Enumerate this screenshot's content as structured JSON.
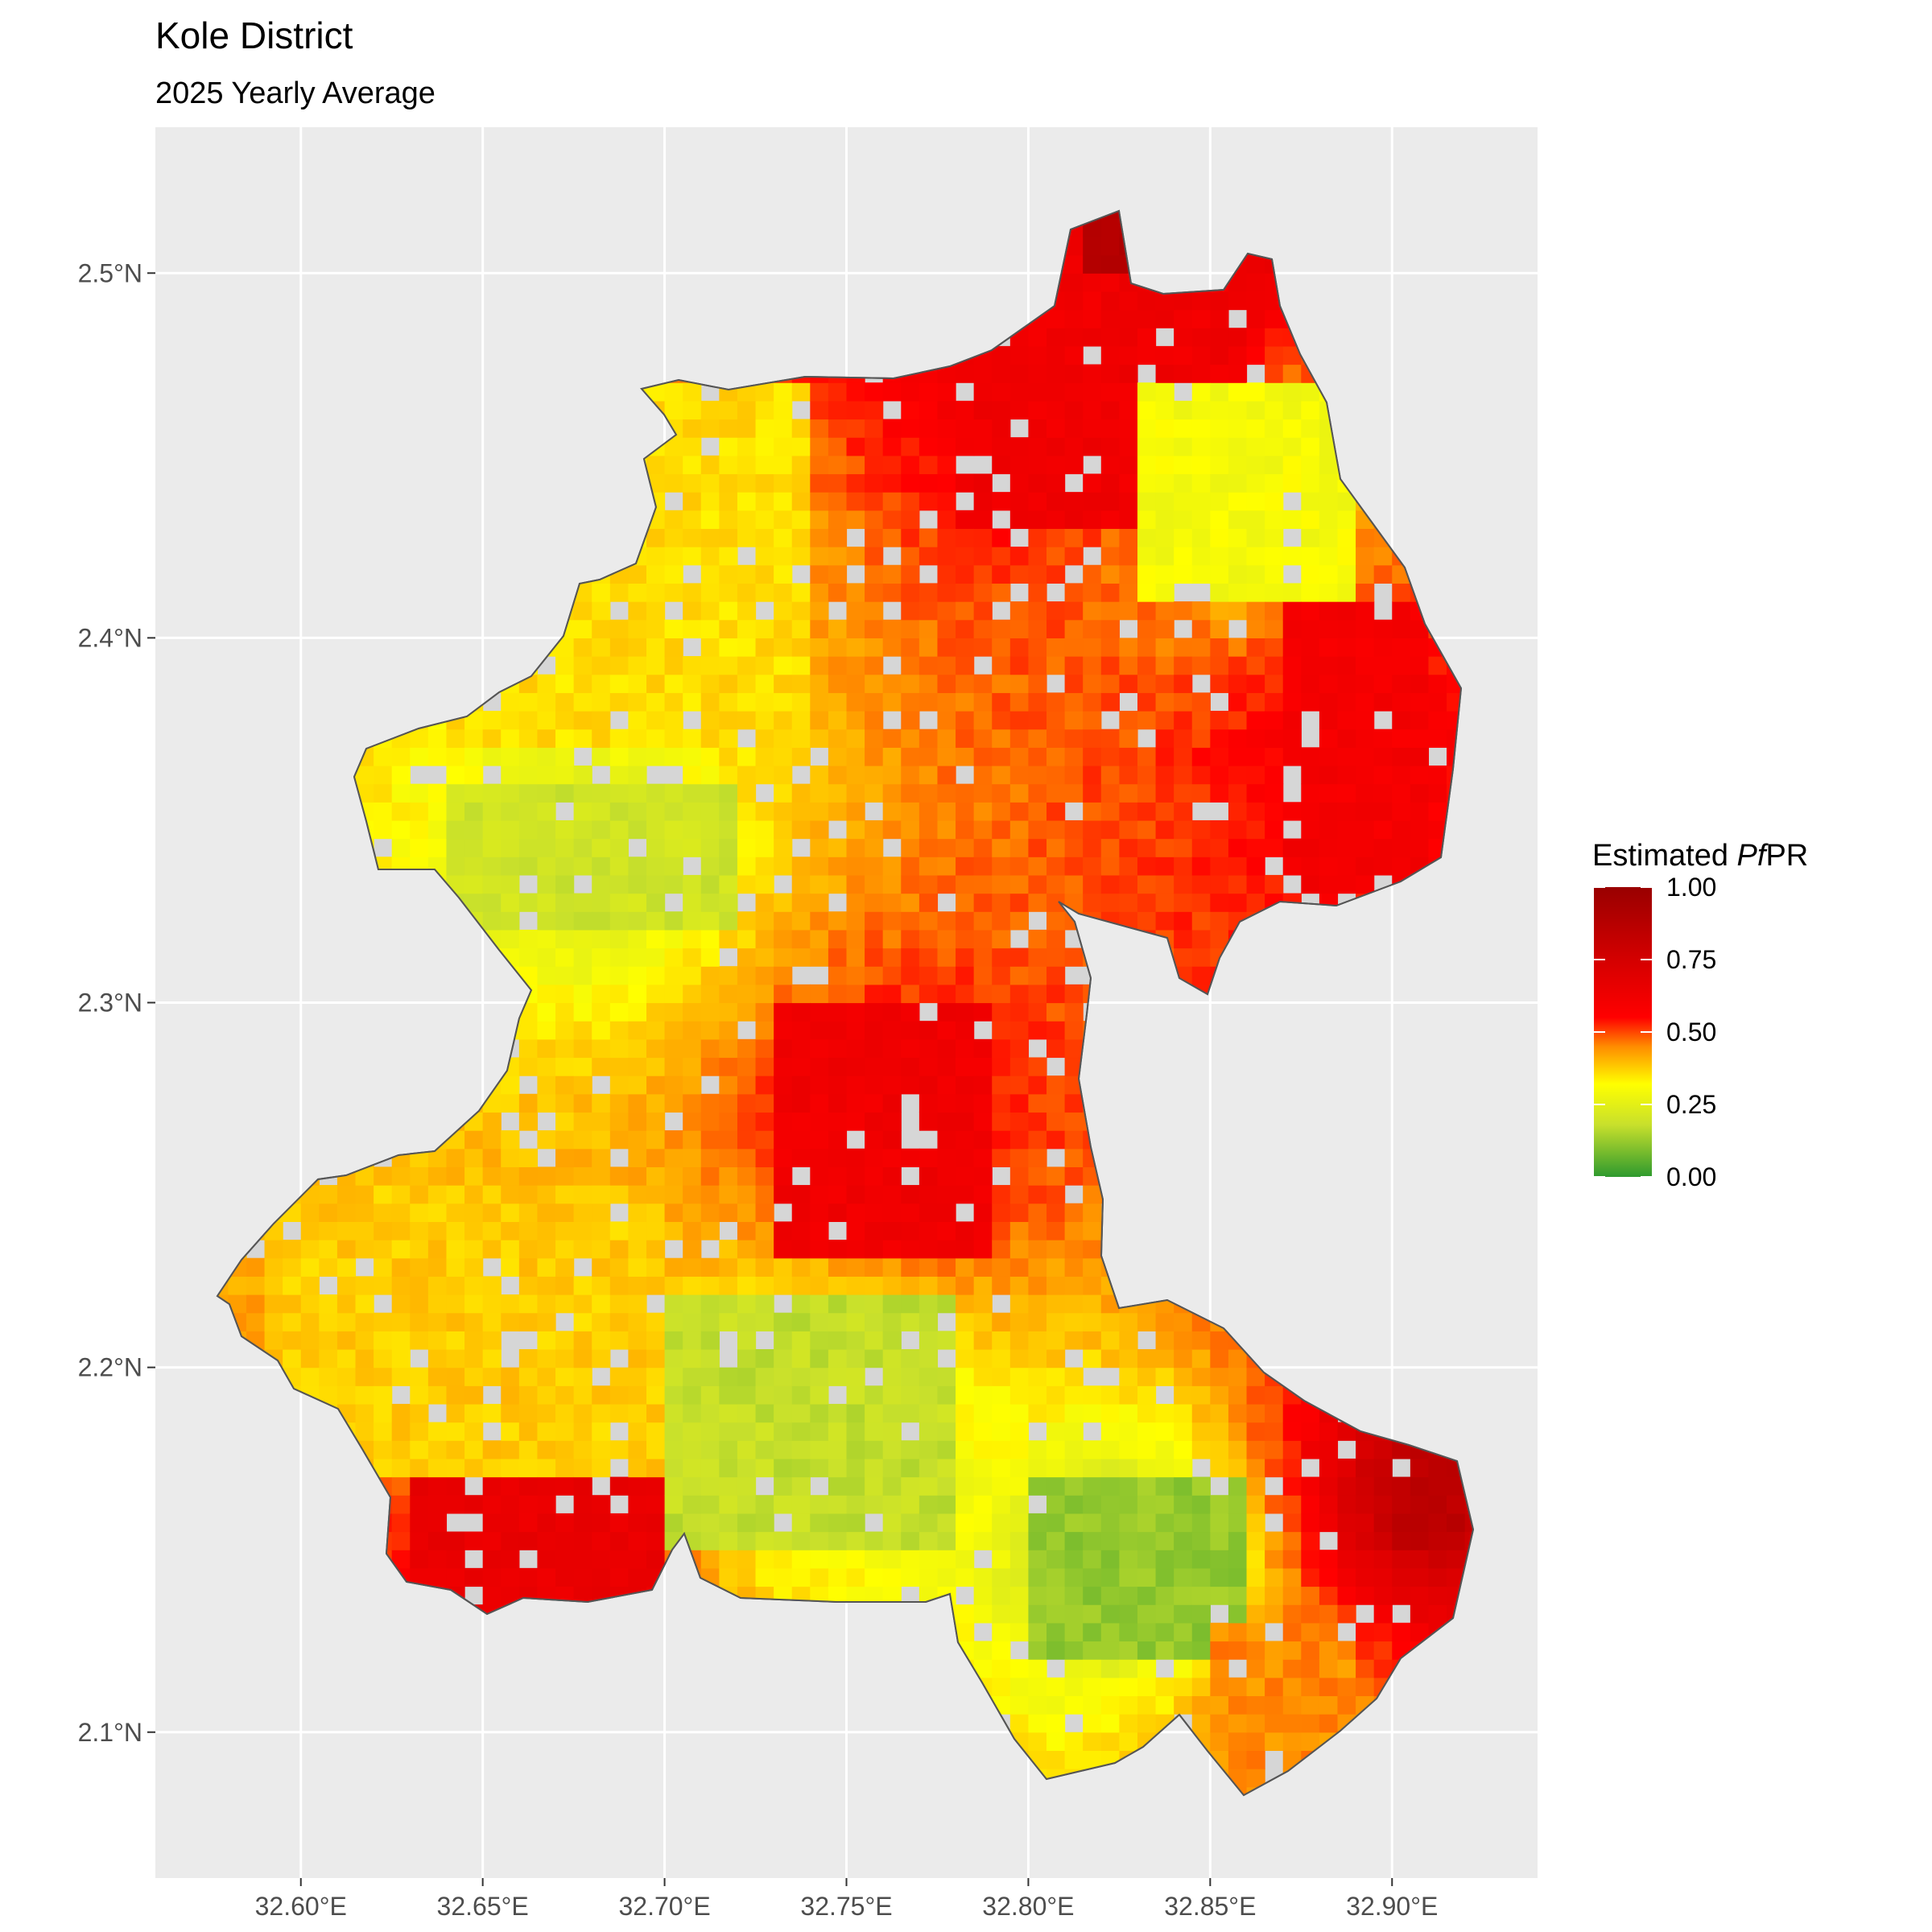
{
  "title": "Kole District",
  "subtitle": "2025 Yearly Average",
  "legend": {
    "title_prefix": "Estimated ",
    "title_italic": "Pf",
    "title_suffix": "PR",
    "position": "right",
    "ticks": [
      "1.00",
      "0.75",
      "0.50",
      "0.25",
      "0.00"
    ],
    "tick_values": [
      1.0,
      0.75,
      0.5,
      0.25,
      0.0
    ],
    "gradient": [
      {
        "value": 0.0,
        "color": "#2e9a2e"
      },
      {
        "value": 0.18,
        "color": "#c8e02c"
      },
      {
        "value": 0.32,
        "color": "#ffff00"
      },
      {
        "value": 0.45,
        "color": "#ff8c00"
      },
      {
        "value": 0.55,
        "color": "#ff0000"
      },
      {
        "value": 0.75,
        "color": "#d40000"
      },
      {
        "value": 1.0,
        "color": "#990000"
      }
    ]
  },
  "axes": {
    "x_ticks": [
      "32.60°E",
      "32.65°E",
      "32.70°E",
      "32.75°E",
      "32.80°E",
      "32.85°E",
      "32.90°E"
    ],
    "x_tick_values": [
      32.6,
      32.65,
      32.7,
      32.75,
      32.8,
      32.85,
      32.9
    ],
    "y_ticks": [
      "2.1°N",
      "2.2°N",
      "2.3°N",
      "2.4°N",
      "2.5°N"
    ],
    "y_tick_values": [
      2.1,
      2.2,
      2.3,
      2.4,
      2.5
    ],
    "xlim": [
      32.56,
      32.94
    ],
    "ylim": [
      2.06,
      2.54
    ],
    "grid": true
  },
  "colors": {
    "panel_background": "#ebebeb",
    "grid_line": "#ffffff",
    "district_fill": "#d6d6d6",
    "district_outline": "#555555",
    "text": "#000000",
    "tick_text": "#4d4d4d"
  },
  "chart_data": {
    "type": "heatmap",
    "value_name": "Estimated PfPR",
    "units": "prevalence (0-1)",
    "regions": [
      {
        "description": "north cluster",
        "lon": [
          32.78,
          32.86
        ],
        "lat": [
          2.43,
          2.52
        ],
        "value": 0.62
      },
      {
        "description": "far north tip",
        "lon": [
          32.815,
          32.83
        ],
        "lat": [
          2.5,
          2.52
        ],
        "value": 0.9
      },
      {
        "description": "northeast yellow block",
        "lon": [
          32.83,
          32.89
        ],
        "lat": [
          2.41,
          2.47
        ],
        "value": 0.3
      },
      {
        "description": "east red block",
        "lon": [
          32.87,
          32.91
        ],
        "lat": [
          2.33,
          2.41
        ],
        "value": 0.6
      },
      {
        "description": "northwest orange",
        "lon": [
          32.64,
          32.74
        ],
        "lat": [
          2.37,
          2.47
        ],
        "value": 0.36
      },
      {
        "description": "west green patch",
        "lon": [
          32.64,
          32.72
        ],
        "lat": [
          2.32,
          2.36
        ],
        "value": 0.2
      },
      {
        "description": "central red",
        "lon": [
          32.73,
          32.79
        ],
        "lat": [
          2.23,
          2.3
        ],
        "value": 0.62
      },
      {
        "description": "southwest orange",
        "lon": [
          32.59,
          32.7
        ],
        "lat": [
          2.17,
          2.25
        ],
        "value": 0.38
      },
      {
        "description": "southwest red",
        "lon": [
          32.63,
          32.7
        ],
        "lat": [
          2.13,
          2.17
        ],
        "value": 0.65
      },
      {
        "description": "south central green",
        "lon": [
          32.7,
          32.78
        ],
        "lat": [
          2.15,
          2.22
        ],
        "value": 0.18
      },
      {
        "description": "southeast green",
        "lon": [
          32.8,
          32.86
        ],
        "lat": [
          2.12,
          2.17
        ],
        "value": 0.12
      },
      {
        "description": "southeast dark red",
        "lon": [
          32.9,
          32.92
        ],
        "lat": [
          2.15,
          2.18
        ],
        "value": 0.85
      },
      {
        "description": "south tip orange",
        "lon": [
          32.85,
          32.89
        ],
        "lat": [
          2.08,
          2.13
        ],
        "value": 0.45
      }
    ]
  }
}
